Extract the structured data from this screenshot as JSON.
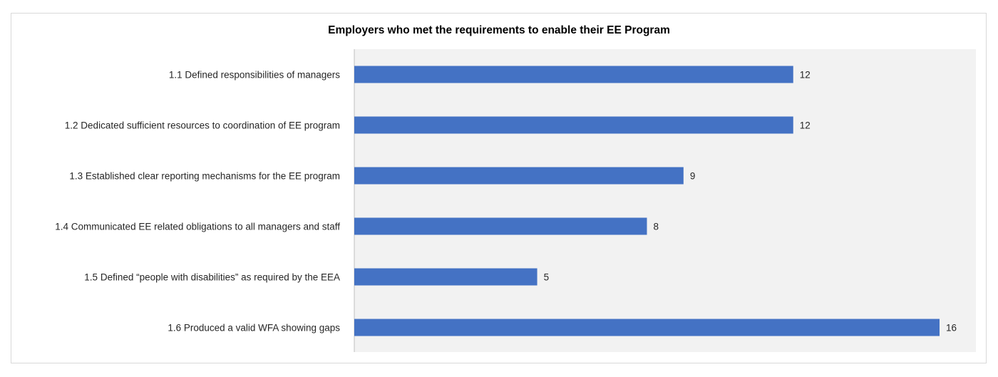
{
  "chart_data": {
    "type": "bar",
    "orientation": "horizontal",
    "title": "Employers who met the requirements to enable their EE Program",
    "categories": [
      "1.1 Defined responsibilities of managers",
      "1.2 Dedicated sufficient resources to coordination of EE program",
      "1.3 Established clear reporting mechanisms for the EE program",
      "1.4 Communicated EE related obligations to all managers and staff",
      "1.5 Defined “people with disabilities” as required by the EEA",
      "1.6 Produced a valid WFA showing gaps"
    ],
    "values": [
      12,
      12,
      9,
      8,
      5,
      16
    ],
    "xlim": [
      0,
      17
    ],
    "data_labels": true,
    "grid": false,
    "legend": "none",
    "colors": {
      "bar": "#4472c4",
      "plot_area": "#f2f2f2",
      "axis": "#bfbfbf"
    }
  }
}
